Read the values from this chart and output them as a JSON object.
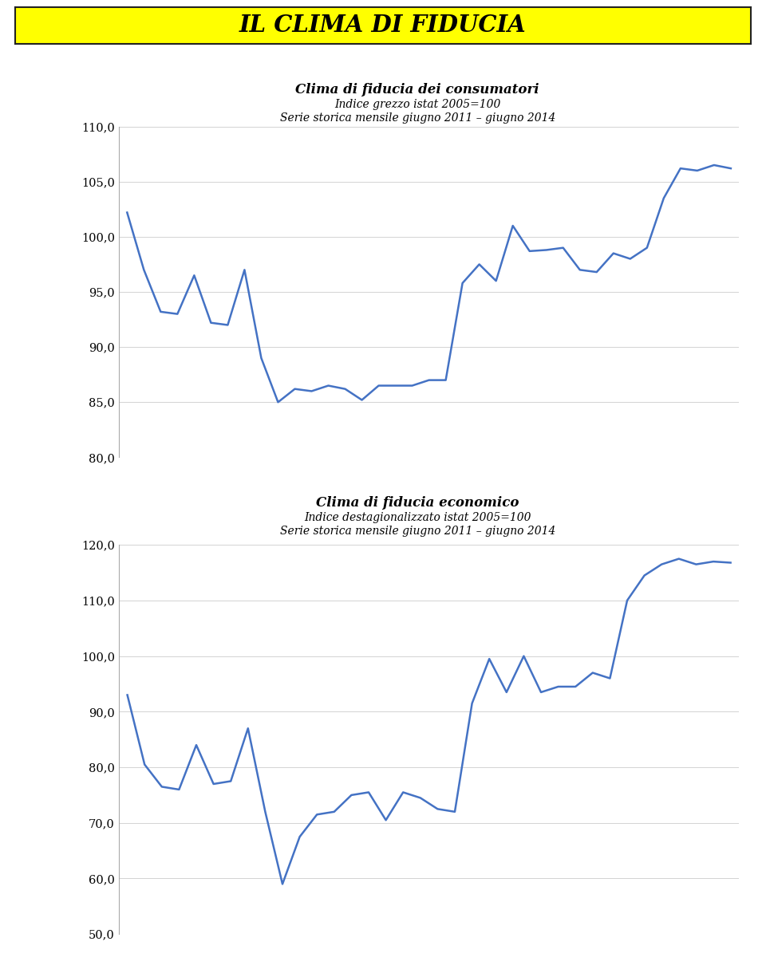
{
  "title_banner": "IL CLIMA DI FIDUCIA",
  "title_banner_bg": "#FFFF00",
  "title_banner_color": "#000000",
  "chart1_title_line1": "Clima di fiducia dei consumatori",
  "chart1_title_line2": "Indice grezzo istat 2005=100",
  "chart1_title_line3": "Serie storica mensile giugno 2011 – giugno 2014",
  "chart1_ylim": [
    80.0,
    110.0
  ],
  "chart1_yticks": [
    80.0,
    85.0,
    90.0,
    95.0,
    100.0,
    105.0,
    110.0
  ],
  "chart1_ytick_labels": [
    "80,0",
    "85,0",
    "90,0",
    "95,0",
    "100,0",
    "105,0",
    "110,0"
  ],
  "chart1_data": [
    102.2,
    97.0,
    93.2,
    93.0,
    96.5,
    92.2,
    92.0,
    97.0,
    89.0,
    85.0,
    86.2,
    86.0,
    86.5,
    86.2,
    85.2,
    86.5,
    86.5,
    86.5,
    87.0,
    87.0,
    95.8,
    97.5,
    96.0,
    101.0,
    98.7,
    98.8,
    99.0,
    97.0,
    96.8,
    98.5,
    98.0,
    99.0,
    103.5,
    106.2,
    106.0,
    106.5,
    106.2
  ],
  "chart2_title_line1": "Clima di fiducia economico",
  "chart2_title_line2": "Indice destagionalizzato istat 2005=100",
  "chart2_title_line3": "Serie storica mensile giugno 2011 – giugno 2014",
  "chart2_ylim": [
    50.0,
    120.0
  ],
  "chart2_yticks": [
    50.0,
    60.0,
    70.0,
    80.0,
    90.0,
    100.0,
    110.0,
    120.0
  ],
  "chart2_ytick_labels": [
    "50,0",
    "60,0",
    "70,0",
    "80,0",
    "90,0",
    "100,0",
    "110,0",
    "120,0"
  ],
  "chart2_data": [
    93.0,
    80.5,
    76.5,
    76.0,
    84.0,
    77.0,
    77.5,
    87.0,
    72.0,
    59.0,
    67.5,
    71.5,
    72.0,
    75.0,
    75.5,
    70.5,
    75.5,
    74.5,
    72.5,
    72.0,
    91.5,
    99.5,
    93.5,
    100.0,
    93.5,
    94.5,
    94.5,
    97.0,
    96.0,
    110.0,
    114.5,
    116.5,
    117.5,
    116.5,
    117.0,
    116.8
  ],
  "line_color": "#4472C4",
  "line_width": 1.8,
  "background_color": "#FFFFFF"
}
